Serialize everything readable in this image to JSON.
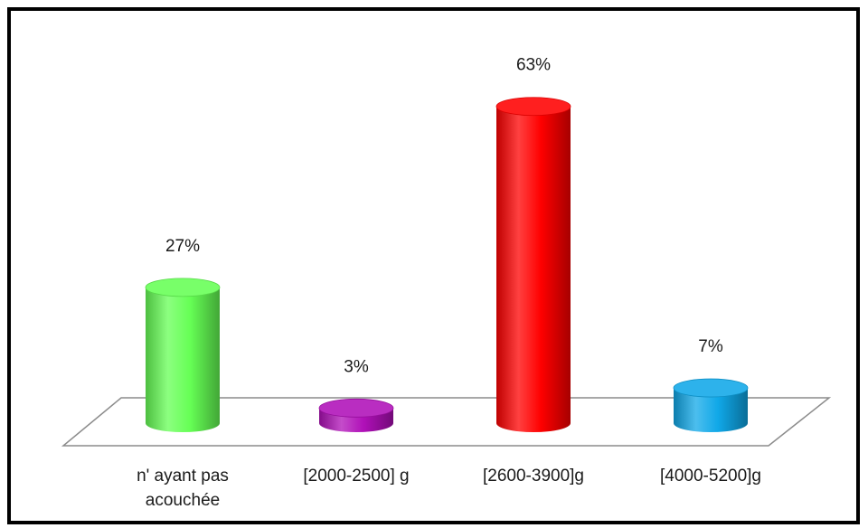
{
  "chart_data": {
    "type": "bar",
    "style": "3d-cylinder",
    "title": "",
    "xlabel": "",
    "ylabel": "",
    "ylim": [
      0,
      70
    ],
    "grid": false,
    "legend": "none",
    "categories": [
      "n' ayant pas acouchée",
      "[2000-2500] g",
      "[2600-3900]g",
      "[4000-5200]g"
    ],
    "category_lines": [
      [
        "n' ayant pas",
        "acouchée"
      ],
      [
        "[2000-2500] g"
      ],
      [
        "[2600-3900]g"
      ],
      [
        "[4000-5200]g"
      ]
    ],
    "values": [
      27,
      3,
      63,
      7
    ],
    "data_labels": [
      "27%",
      "3%",
      "63%",
      "7%"
    ],
    "colors": [
      "#66ff55",
      "#b010b8",
      "#ff0000",
      "#10a8e8"
    ]
  }
}
